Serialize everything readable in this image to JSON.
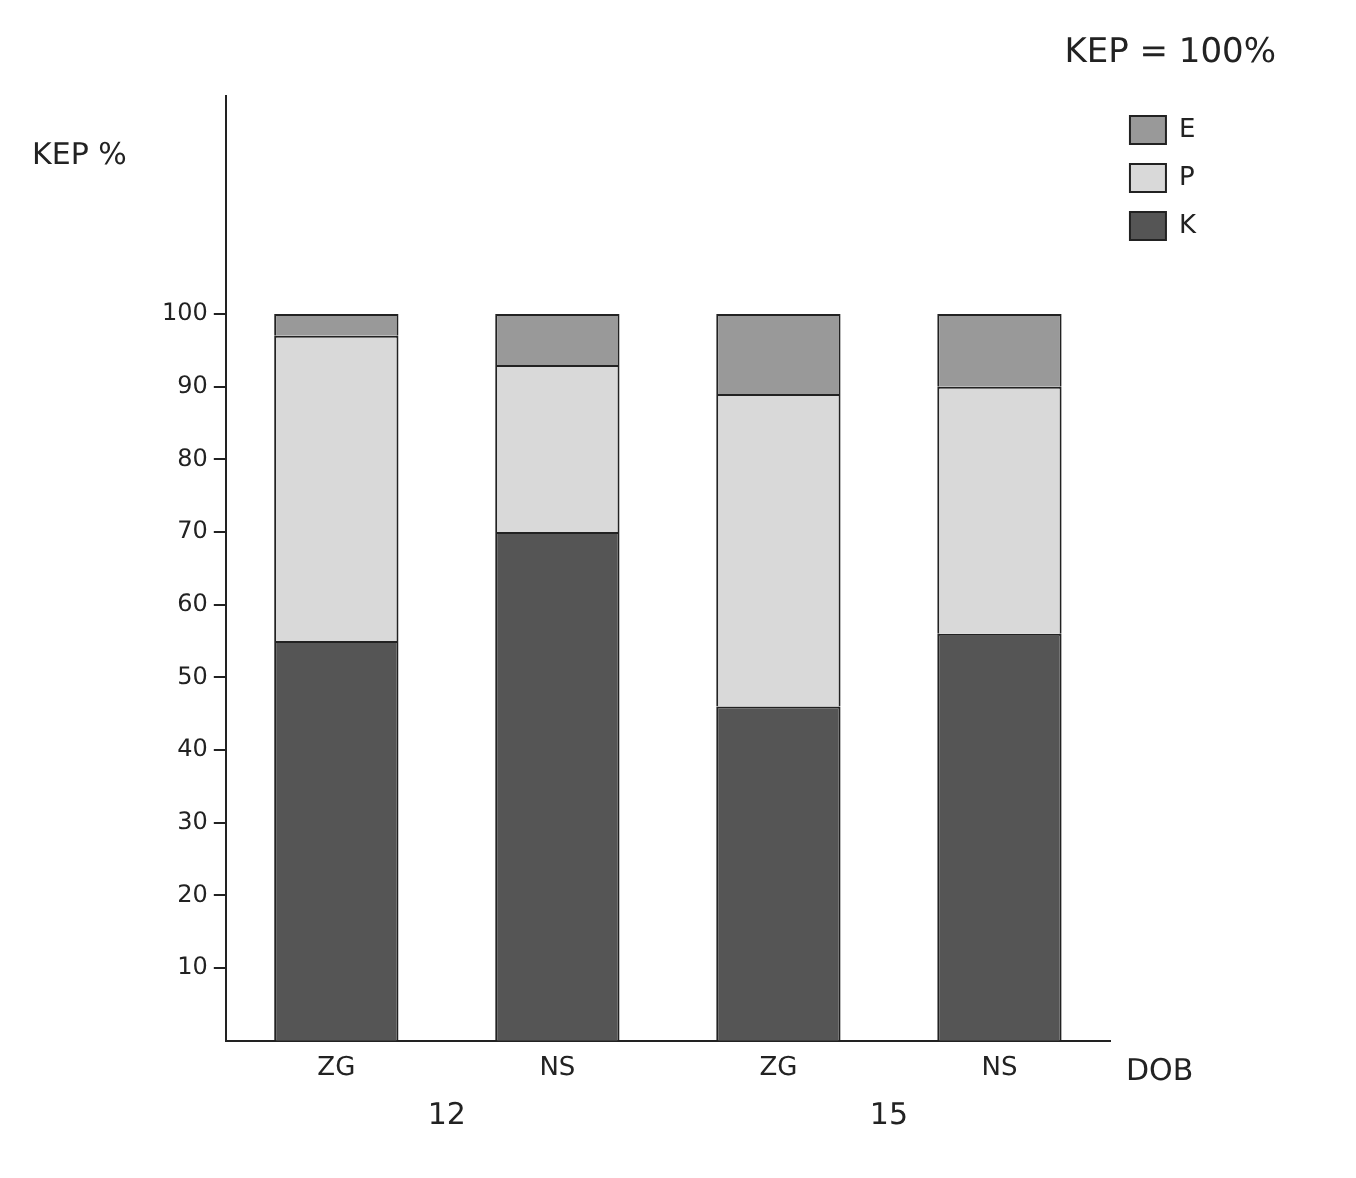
{
  "chart_data": {
    "type": "bar",
    "title": "KEP = 100%",
    "ylabel": "KEP %",
    "xlabel": "DOB",
    "categories": [
      "ZG",
      "NS",
      "ZG",
      "NS"
    ],
    "annotations": [
      "12",
      "15"
    ],
    "stacked": true,
    "series": [
      {
        "name": "K",
        "color": "#555555",
        "values": [
          55,
          70,
          46,
          56
        ]
      },
      {
        "name": "P",
        "color": "#d9d9d9",
        "values": [
          42,
          23,
          43,
          34
        ]
      },
      {
        "name": "E",
        "color": "#999999",
        "values": [
          3,
          7,
          11,
          10
        ]
      }
    ],
    "ylim": [
      0,
      130
    ],
    "yticks": [
      10,
      20,
      30,
      40,
      50,
      60,
      70,
      80,
      90,
      100
    ],
    "grid": false,
    "legend": "top right"
  }
}
